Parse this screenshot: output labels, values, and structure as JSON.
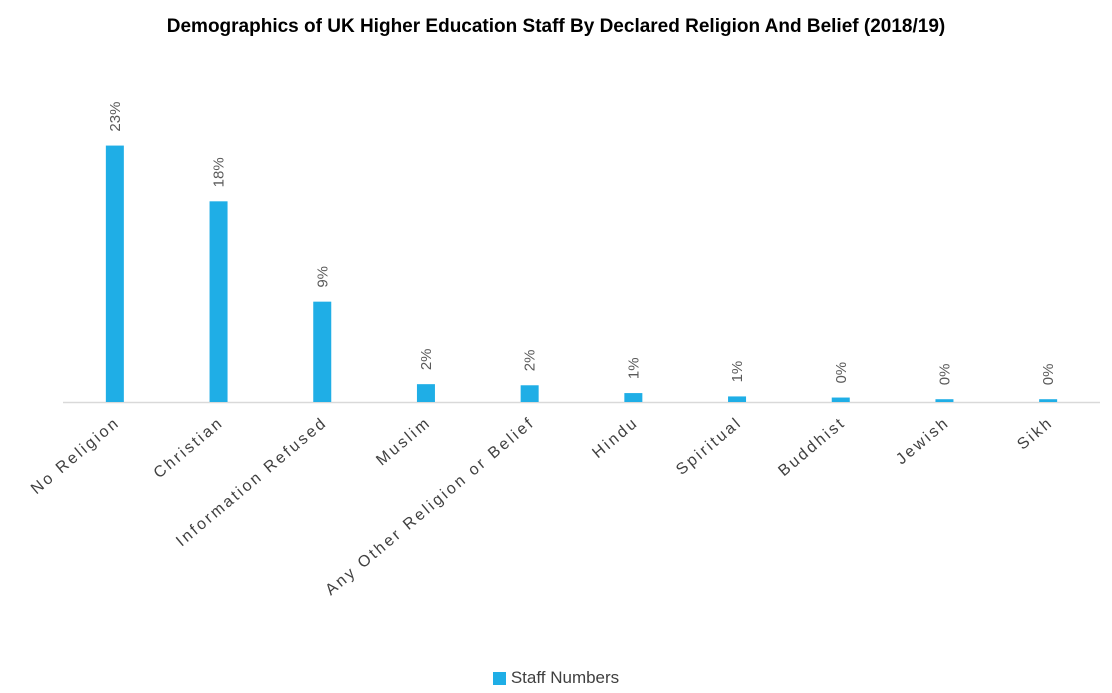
{
  "chart_data": {
    "type": "bar",
    "title": "Demographics of UK Higher Education Staff By Declared Religion And Belief (2018/19)",
    "xlabel": "",
    "ylabel": "",
    "categories": [
      "No Religion",
      "Christian",
      "Information Refused",
      "Muslim",
      "Any Other Religion or Belief",
      "Hindu",
      "Spiritual",
      "Buddhist",
      "Jewish",
      "Sikh"
    ],
    "series": [
      {
        "name": "Staff Numbers",
        "values": [
          23,
          18,
          9,
          1.6,
          1.5,
          0.8,
          0.5,
          0.4,
          0.25,
          0.25
        ],
        "labels": [
          "23%",
          "18%",
          "9%",
          "2%",
          "2%",
          "1%",
          "1%",
          "0%",
          "0%",
          "0%"
        ]
      }
    ],
    "ylim": [
      0,
      23.5
    ],
    "grid": false,
    "legend": "bottom",
    "colors": {
      "bar": "#1FAEE6",
      "axis": "#D9D9D9",
      "label": "#595959"
    }
  }
}
